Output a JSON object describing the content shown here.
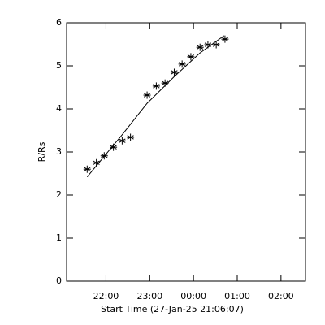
{
  "chart_data": {
    "type": "scatter",
    "x_label": "Start Time (27-Jan-25 21:06:07)",
    "y_label": "R/Rs",
    "x": [
      21.57,
      21.78,
      21.96,
      22.17,
      22.37,
      22.56,
      22.94,
      23.15,
      23.35,
      23.56,
      23.74,
      23.94,
      24.15,
      24.33,
      24.52,
      24.72
    ],
    "values": [
      2.6,
      2.75,
      2.91,
      3.11,
      3.26,
      3.34,
      4.32,
      4.53,
      4.6,
      4.85,
      5.04,
      5.21,
      5.43,
      5.49,
      5.49,
      5.62
    ],
    "fit_x": [
      21.57,
      21.96,
      22.37,
      22.94,
      23.56,
      24.15,
      24.7
    ],
    "fit_values": [
      2.42,
      2.9,
      3.4,
      4.13,
      4.75,
      5.3,
      5.7
    ],
    "color": "#000000",
    "xlim": [
      21.1,
      26.56
    ],
    "xticks": [
      {
        "value": 22,
        "label": "22:00"
      },
      {
        "value": 23,
        "label": "23:00"
      },
      {
        "value": 24,
        "label": "00:00"
      },
      {
        "value": 25,
        "label": "01:00"
      },
      {
        "value": 26,
        "label": "02:00"
      }
    ],
    "ylim": [
      0,
      6
    ],
    "yticks": [
      0,
      1,
      2,
      3,
      4,
      5,
      6
    ]
  }
}
